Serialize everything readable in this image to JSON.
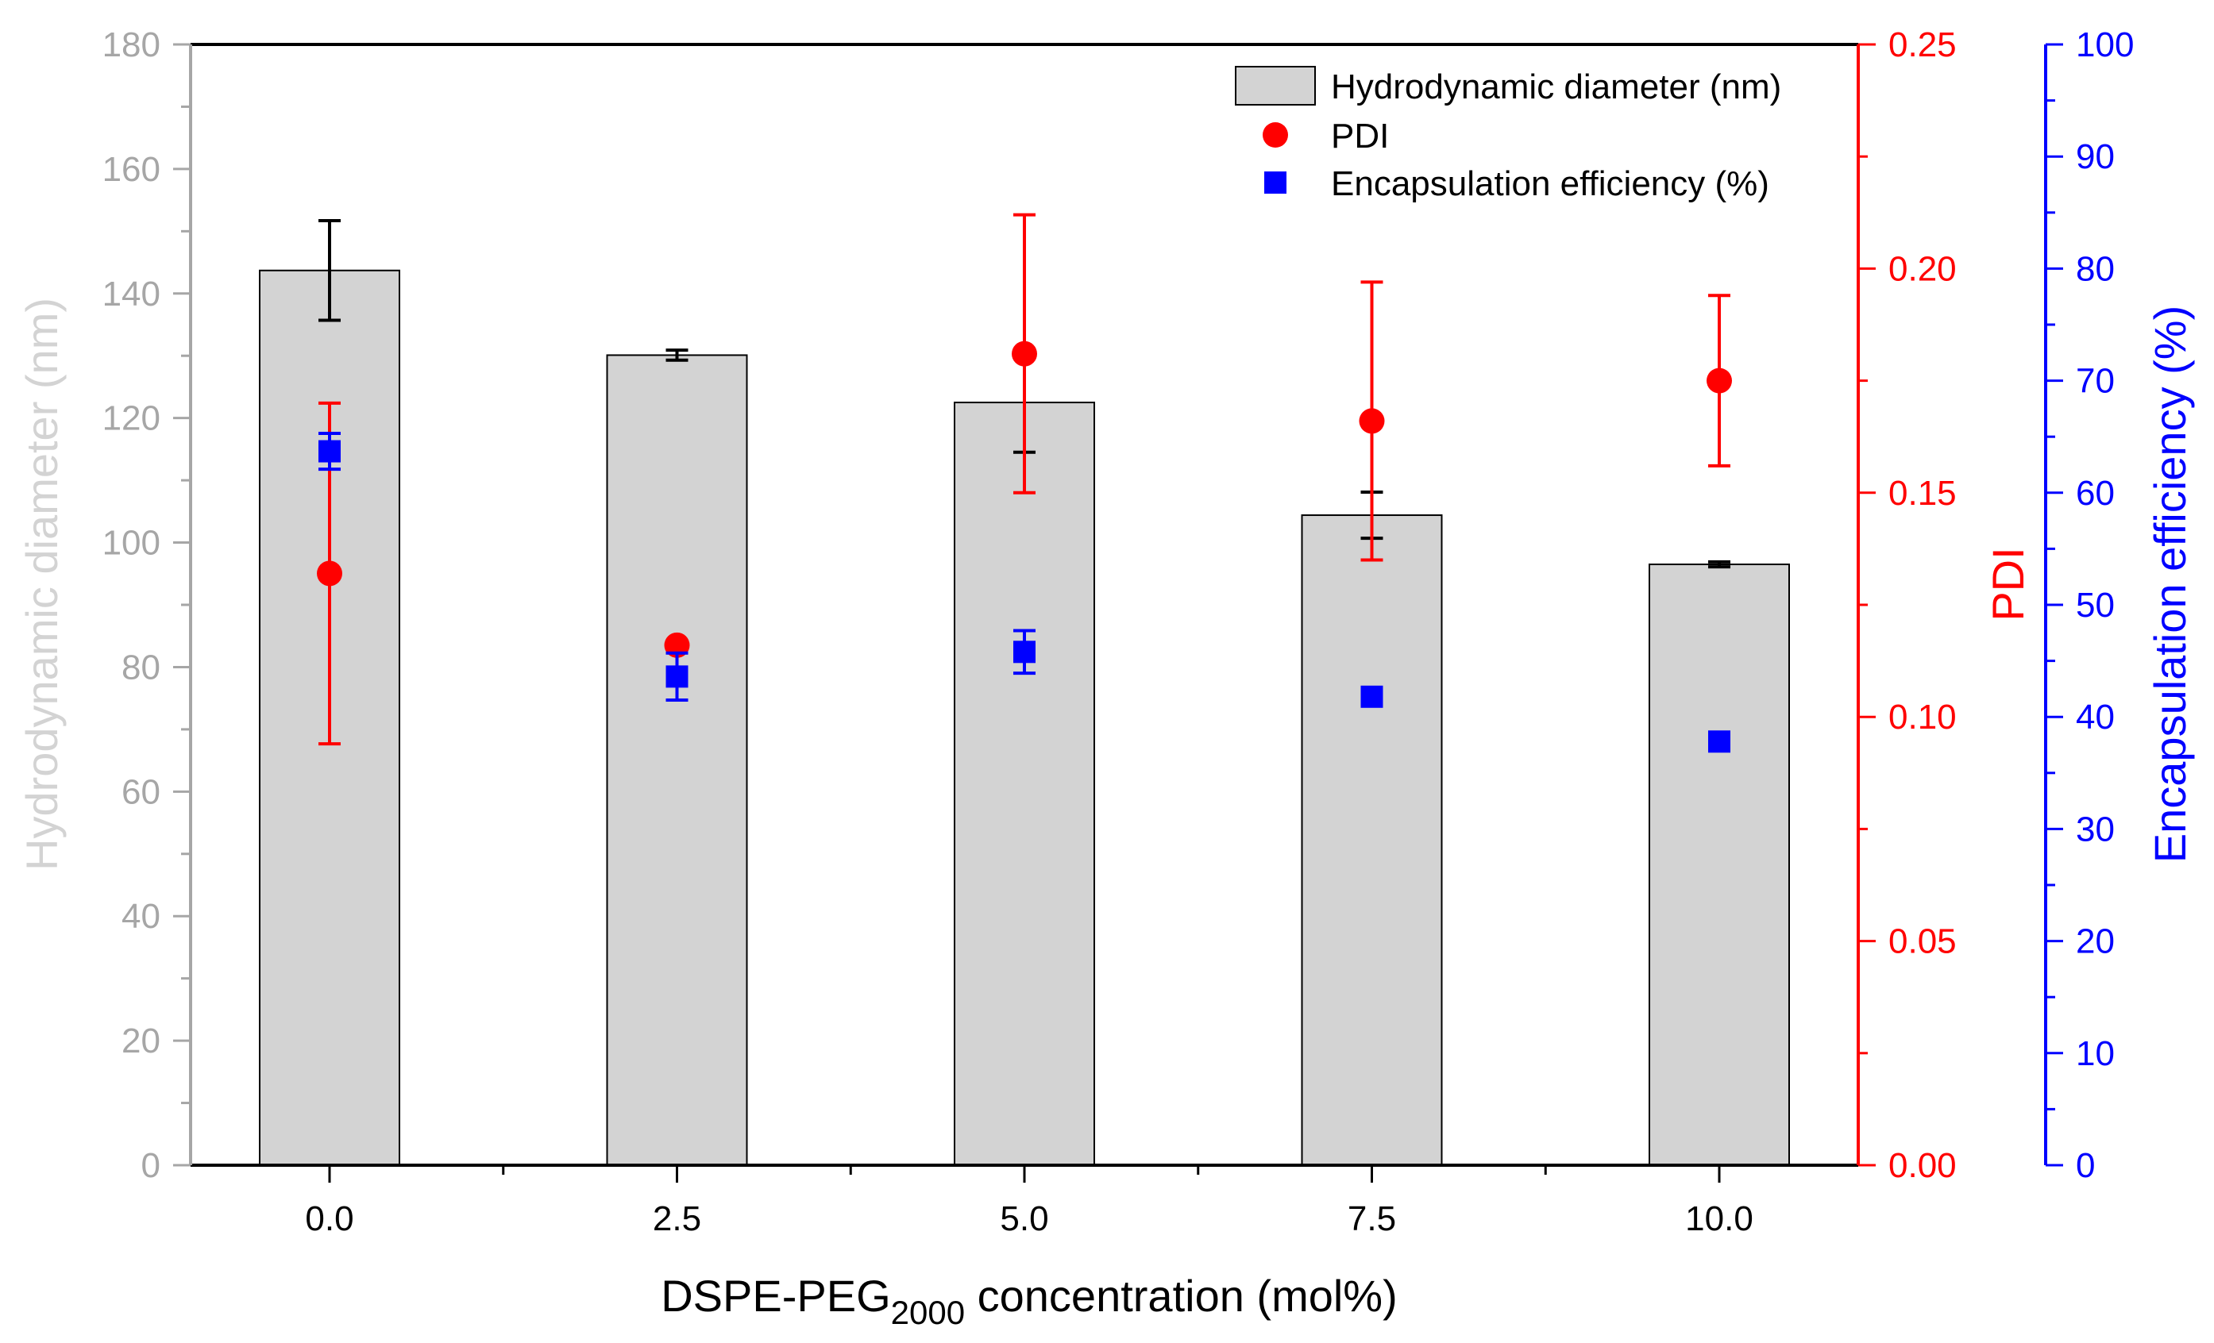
{
  "chart_data": {
    "type": "bar",
    "categories": [
      "0.0",
      "2.5",
      "5.0",
      "7.5",
      "10.0"
    ],
    "x": [
      0.0,
      2.5,
      5.0,
      7.5,
      10.0
    ],
    "xlim": [
      -1.0,
      11.0
    ],
    "x_ticks": [
      "0.0",
      "2.5",
      "5.0",
      "7.5",
      "10.0"
    ],
    "xlabel": {
      "prefix": "DSPE-PEG",
      "subscript": "2000",
      "suffix": " concentration (mol%)"
    },
    "series": [
      {
        "name": "Hydrodynamic diameter (nm)",
        "kind": "bar",
        "axis": "left",
        "values": [
          143.7,
          130.1,
          122.5,
          104.4,
          96.5
        ],
        "errors": [
          8.0,
          0.8,
          8.0,
          3.7,
          0.4
        ],
        "color": "#d3d3d3",
        "error_color": "#000000"
      },
      {
        "name": "PDI",
        "kind": "scatter",
        "marker": "circle",
        "axis": "right1",
        "values": [
          0.132,
          0.116,
          0.181,
          0.166,
          0.175
        ],
        "errors": [
          0.038,
          0.001,
          0.031,
          0.031,
          0.019
        ],
        "color": "#ff0000"
      },
      {
        "name": "Encapsulation efficiency (%)",
        "kind": "scatter",
        "marker": "square",
        "axis": "right2",
        "values": [
          63.7,
          43.6,
          45.8,
          41.8,
          37.8
        ],
        "errors": [
          1.6,
          2.1,
          1.9,
          0.8,
          0.4
        ],
        "color": "#0000ff"
      }
    ],
    "y_left": {
      "label": "Hydrodynamic diameter (nm)",
      "range": [
        0,
        180
      ],
      "ticks": [
        "0",
        "20",
        "40",
        "60",
        "80",
        "100",
        "120",
        "140",
        "160",
        "180"
      ],
      "color": "#a6a6a6",
      "label_color": "#d3d3d3"
    },
    "y_right1": {
      "label": "PDI",
      "range": [
        0,
        0.25
      ],
      "ticks": [
        "0.00",
        "0.05",
        "0.10",
        "0.15",
        "0.20",
        "0.25"
      ],
      "color": "#ff0000"
    },
    "y_right2": {
      "label": "Encapsulation efficiency (%)",
      "range": [
        0,
        100
      ],
      "ticks": [
        "0",
        "10",
        "20",
        "30",
        "40",
        "50",
        "60",
        "70",
        "80",
        "90",
        "100"
      ],
      "color": "#0000ff"
    },
    "legend": {
      "position": "top-right",
      "entries": [
        "Hydrodynamic diameter (nm)",
        "PDI",
        "Encapsulation efficiency (%)"
      ]
    }
  }
}
